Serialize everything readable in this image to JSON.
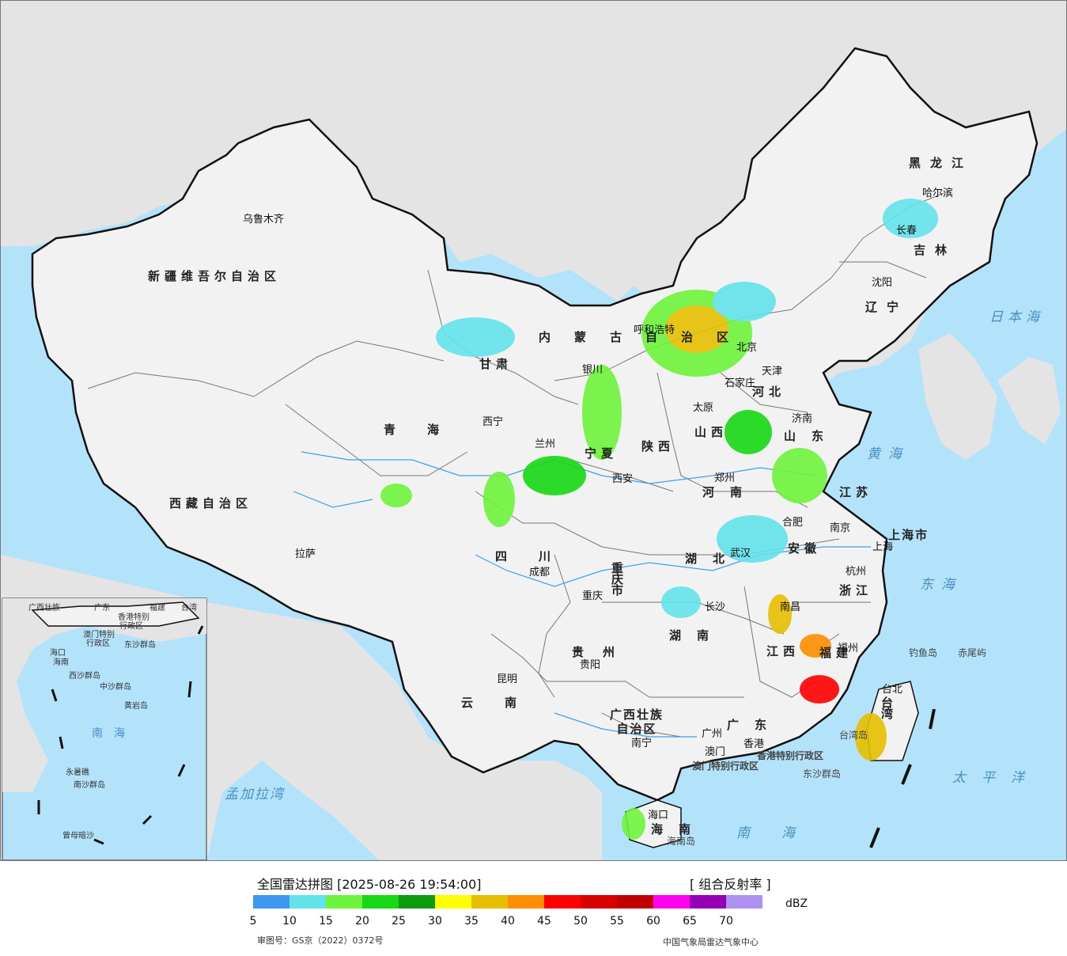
{
  "legend": {
    "title": "全国雷达拼图 [2025-08-26 19:54:00]",
    "product": "[ 组合反射率 ]",
    "unit": "dBZ",
    "ticks": [
      "5",
      "10",
      "15",
      "20",
      "25",
      "30",
      "35",
      "40",
      "45",
      "50",
      "55",
      "60",
      "65",
      "70"
    ],
    "colors": [
      "#3f98f0",
      "#64e2ea",
      "#6ef43c",
      "#17d814",
      "#0e9a0e",
      "#ffff00",
      "#e6c000",
      "#ff8e00",
      "#ff0000",
      "#d90000",
      "#c00000",
      "#ff00f0",
      "#9400b4",
      "#ad90f0"
    ],
    "approval": "审图号：GS京（2022）0372号",
    "source": "中国气象局雷达气象中心"
  },
  "map": {
    "colors": {
      "sea": "#b3e3fb",
      "land_china": "#f2f2f2",
      "land_other": "#e4e4e4",
      "border": "#111111",
      "province": "#777777"
    },
    "provinces": [
      "新疆维吾尔自治区",
      "西藏自治区",
      "青海",
      "甘肃",
      "内蒙古自治区",
      "黑龙江",
      "吉林",
      "辽宁",
      "河北",
      "山西",
      "陕西",
      "宁夏",
      "河南",
      "山东",
      "江苏",
      "安徽",
      "湖北",
      "四川",
      "重庆市",
      "贵州",
      "云南",
      "湖南",
      "江西",
      "浙江",
      "福建",
      "广东",
      "广西壮族自治区",
      "海南",
      "台湾",
      "上海市",
      "北京",
      "天津"
    ],
    "cities": [
      "乌鲁木齐",
      "拉萨",
      "西宁",
      "兰州",
      "银川",
      "呼和浩特",
      "北京",
      "天津",
      "石家庄",
      "太原",
      "济南",
      "郑州",
      "西安",
      "成都",
      "重庆",
      "贵阳",
      "昆明",
      "武汉",
      "长沙",
      "南昌",
      "合肥",
      "南京",
      "上海",
      "杭州",
      "福州",
      "台北",
      "广州",
      "香港",
      "澳门",
      "南宁",
      "海口",
      "哈尔滨",
      "长春",
      "沈阳"
    ],
    "seas": [
      "黄海",
      "东海",
      "日本海",
      "南海",
      "太平洋",
      "孟加拉湾"
    ],
    "islands": [
      "钓鱼岛",
      "赤尾屿",
      "东沙群岛",
      "海南岛",
      "香港特别行政区",
      "澳门特别行政区",
      "台湾岛"
    ],
    "inset": [
      "广西壮族",
      "广东",
      "福建",
      "香港特别",
      "行政区",
      "澳门特别",
      "行政区",
      "台湾",
      "海口",
      "海南",
      "东沙群岛",
      "中沙群岛",
      "黄岩岛",
      "西沙群岛",
      "南海",
      "永暑礁",
      "南沙群岛",
      "曾母暗沙"
    ]
  }
}
